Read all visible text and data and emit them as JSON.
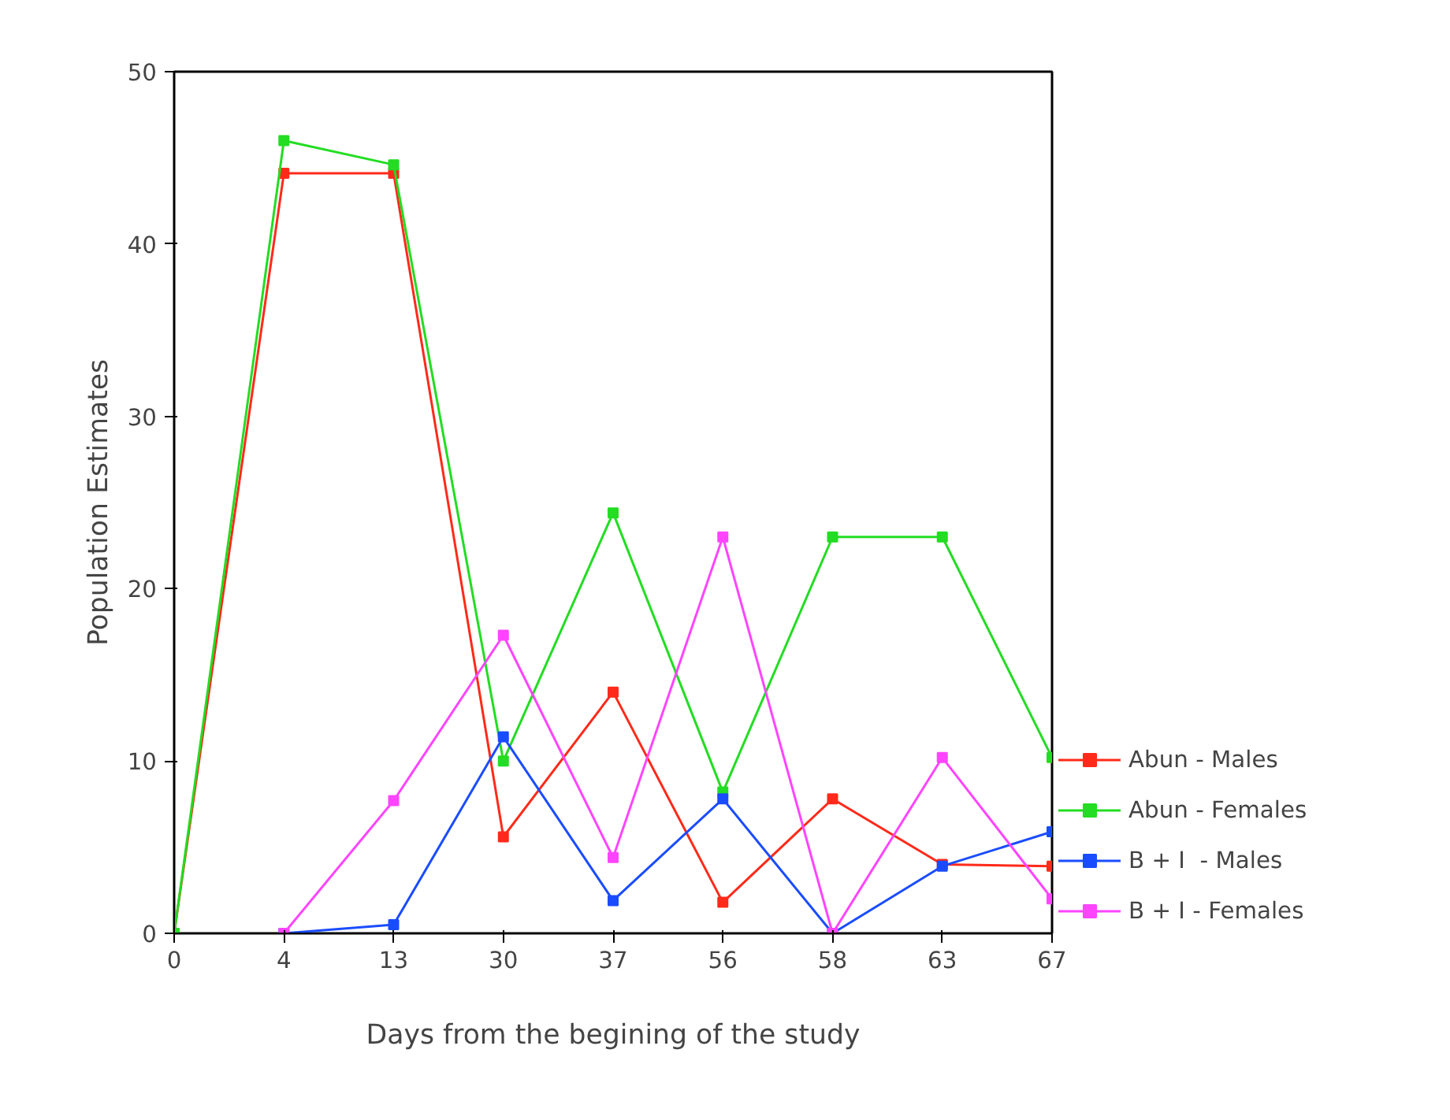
{
  "chart_data": {
    "type": "line",
    "xlabel": "Days from the begining of the study",
    "ylabel": "Population Estimates",
    "categories": [
      "0",
      "4",
      "13",
      "30",
      "37",
      "56",
      "58",
      "63",
      "67"
    ],
    "series": [
      {
        "name": "Abun - Males",
        "color": "#ff2a1a",
        "values": [
          0,
          44.1,
          44.1,
          5.6,
          14.0,
          1.8,
          7.8,
          4.0,
          3.9
        ]
      },
      {
        "name": "Abun - Females",
        "color": "#22dd22",
        "values": [
          0,
          46.0,
          44.6,
          10.0,
          24.4,
          8.2,
          23.0,
          23.0,
          10.2
        ]
      },
      {
        "name": "B + I  - Males",
        "color": "#1a4cff",
        "values": [
          null,
          0,
          0.5,
          11.4,
          1.9,
          7.8,
          0,
          3.9,
          5.9
        ]
      },
      {
        "name": "B + I - Females",
        "color": "#ff44ff",
        "values": [
          null,
          0,
          7.7,
          17.3,
          4.4,
          23.0,
          0,
          10.2,
          2.0
        ]
      }
    ],
    "ylim": [
      0,
      50
    ],
    "yticks": [
      0,
      10,
      20,
      30,
      40,
      50
    ],
    "marker": "square",
    "legend": "right",
    "grid": false
  }
}
